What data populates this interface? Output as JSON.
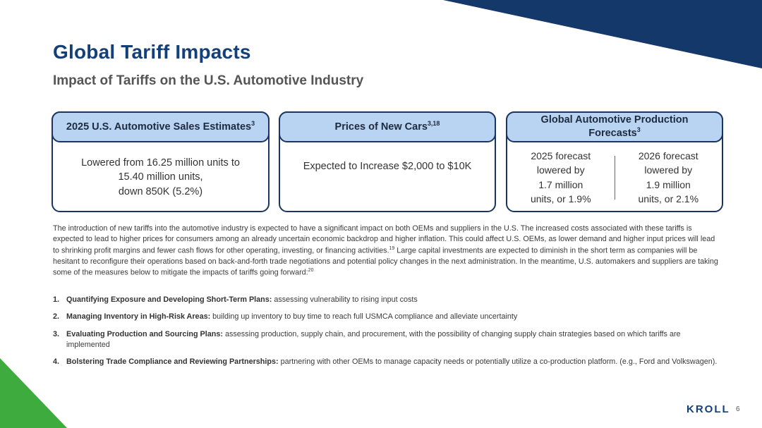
{
  "title": "Global Tariff Impacts",
  "subtitle": "Impact of Tariffs on the U.S. Automotive Industry",
  "cards": [
    {
      "header": "2025 U.S. Automotive Sales Estimates",
      "header_ref": "3",
      "body_lines": [
        "Lowered from 16.25 million units to",
        "15.40 million units,",
        "down 850K (5.2%)"
      ]
    },
    {
      "header": "Prices of New Cars",
      "header_ref": "3,18",
      "body": "Expected to Increase $2,000 to $10K"
    },
    {
      "header": "Global Automotive Production Forecasts",
      "header_ref": "3",
      "left_lines": [
        "2025 forecast",
        "lowered by",
        "1.7 million",
        "units, or 1.9%"
      ],
      "right_lines": [
        "2026 forecast",
        "lowered by",
        "1.9 million",
        "units, or 2.1%"
      ]
    }
  ],
  "intro": {
    "part1": "The introduction of new tariffs into the automotive industry is expected to have a significant impact on both OEMs and suppliers in the U.S. The increased costs associated with these tariffs is expected to lead to higher prices for consumers among an already uncertain economic backdrop and higher inflation. This could affect U.S. OEMs, as lower demand and higher input prices will lead to shrinking profit margins and fewer cash flows for other operating, investing, or financing activities.",
    "ref1": "19",
    "part2": " Large capital investments are expected to diminish in the short term as companies will be hesitant to reconfigure their operations based on back-and-forth trade negotiations and potential policy changes in the next administration. In the meantime, U.S. automakers and suppliers are taking some of the measures below to mitigate the impacts of tariffs going forward:",
    "ref2": "20"
  },
  "steps": [
    {
      "num": "1.",
      "head": "Quantifying Exposure and Developing Short-Term Plans:",
      "text": " assessing vulnerability to rising input costs"
    },
    {
      "num": "2.",
      "head": "Managing Inventory in High-Risk Areas:",
      "text": " building up inventory to buy time to reach full USMCA compliance and alleviate uncertainty"
    },
    {
      "num": "3.",
      "head": "Evaluating Production and Sourcing Plans:",
      "text": " assessing production, supply chain, and procurement, with the possibility of changing supply chain strategies based on which tariffs are implemented"
    },
    {
      "num": "4.",
      "head": "Bolstering Trade Compliance and Reviewing Partnerships:",
      "text": " partnering with other OEMs to manage capacity needs or potentially utilize a co-production platform. (e.g., Ford and Volkswagen)."
    }
  ],
  "logo": "KROLL",
  "page_number": "6",
  "colors": {
    "title": "#14407a",
    "navy_band": "#15386b",
    "green_corner": "#3eab3f",
    "card_header_bg": "#b9d3f3",
    "card_border": "#1a3562"
  }
}
